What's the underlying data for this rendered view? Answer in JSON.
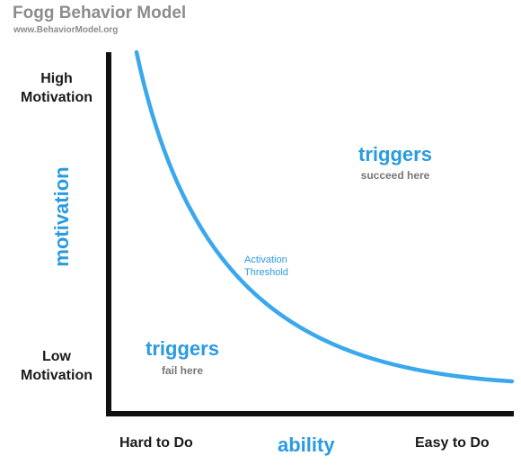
{
  "header": {
    "title": "Fogg Behavior Model",
    "url": "www.BehaviorModel.org"
  },
  "y_axis": {
    "top_label_line1": "High",
    "top_label_line2": "Motivation",
    "bottom_label_line1": "Low",
    "bottom_label_line2": "Motivation",
    "axis_title": "motivation"
  },
  "x_axis": {
    "left_label": "Hard to Do",
    "right_label": "Easy to Do",
    "axis_title": "ability"
  },
  "regions": {
    "above": {
      "title": "triggers",
      "subtitle": "succeed here"
    },
    "below": {
      "title": "triggers",
      "subtitle": "fail here"
    }
  },
  "curve": {
    "label_line1": "Activation",
    "label_line2": "Threshold"
  },
  "colors": {
    "accent": "#2a9be0",
    "axis": "#111111",
    "header": "#8c8c8c"
  }
}
